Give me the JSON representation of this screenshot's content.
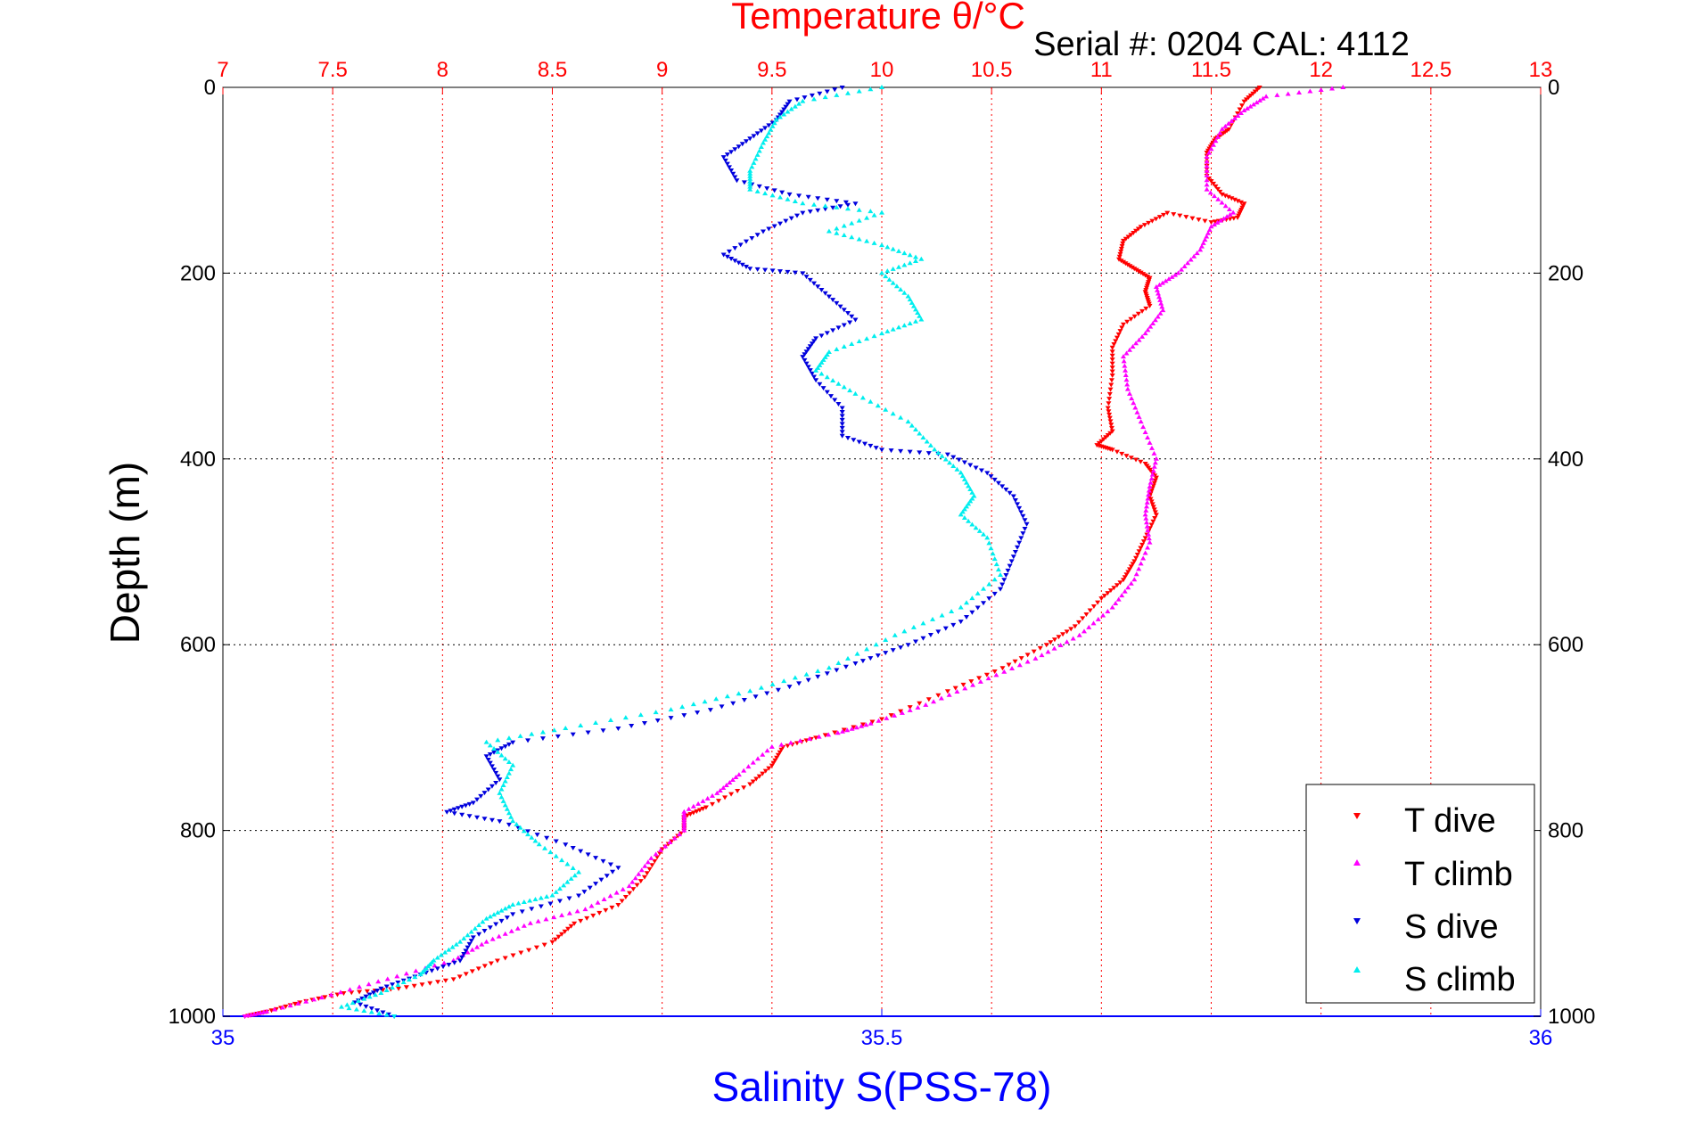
{
  "chart_data": {
    "type": "scatter",
    "title": "Temperature θ/°C",
    "subtitle": "Serial #: 0204  CAL: 4112",
    "xlabel_top": "Temperature θ/°C",
    "xlabel_bottom": "Salinity S(PSS-78)",
    "ylabel": "Depth (m)",
    "temperature_axis": {
      "range": [
        7,
        13
      ],
      "ticks": [
        "7",
        "7.5",
        "8",
        "8.5",
        "9",
        "9.5",
        "10",
        "10.5",
        "11",
        "11.5",
        "12",
        "12.5",
        "13"
      ]
    },
    "salinity_axis": {
      "range": [
        35,
        36
      ],
      "ticks": [
        "35",
        "35.5",
        "36"
      ]
    },
    "depth_axis": {
      "range": [
        0,
        1000
      ],
      "reversed": true,
      "ticks": [
        "0",
        "200",
        "400",
        "600",
        "800",
        "1000"
      ]
    },
    "grid": true,
    "legend": {
      "placement": "bottom-right",
      "entries": [
        "T dive",
        "T climb",
        "S dive",
        "S climb"
      ]
    },
    "colors": {
      "T dive": "#ff0000",
      "T climb": "#ff00ff",
      "S dive": "#0000dd",
      "S climb": "#00eeee",
      "temperature_axis": "#ff0000",
      "salinity_axis": "#0000ff"
    },
    "series": [
      {
        "name": "T dive",
        "axis": "temperature",
        "points": [
          [
            11.72,
            0
          ],
          [
            11.65,
            15
          ],
          [
            11.58,
            45
          ],
          [
            11.52,
            55
          ],
          [
            11.48,
            70
          ],
          [
            11.48,
            95
          ],
          [
            11.55,
            115
          ],
          [
            11.65,
            125
          ],
          [
            11.62,
            140
          ],
          [
            11.5,
            145
          ],
          [
            11.3,
            135
          ],
          [
            11.18,
            150
          ],
          [
            11.1,
            165
          ],
          [
            11.08,
            185
          ],
          [
            11.15,
            195
          ],
          [
            11.22,
            205
          ],
          [
            11.2,
            220
          ],
          [
            11.22,
            235
          ],
          [
            11.1,
            255
          ],
          [
            11.05,
            280
          ],
          [
            11.05,
            310
          ],
          [
            11.03,
            345
          ],
          [
            11.05,
            370
          ],
          [
            10.98,
            385
          ],
          [
            11.05,
            390
          ],
          [
            11.2,
            405
          ],
          [
            11.25,
            420
          ],
          [
            11.22,
            440
          ],
          [
            11.25,
            460
          ],
          [
            11.2,
            485
          ],
          [
            11.15,
            510
          ],
          [
            11.1,
            530
          ],
          [
            11.0,
            550
          ],
          [
            10.88,
            580
          ],
          [
            10.75,
            600
          ],
          [
            10.55,
            625
          ],
          [
            10.3,
            650
          ],
          [
            10.0,
            680
          ],
          [
            9.7,
            700
          ],
          [
            9.55,
            710
          ],
          [
            9.5,
            730
          ],
          [
            9.4,
            750
          ],
          [
            9.2,
            775
          ],
          [
            9.1,
            785
          ],
          [
            9.1,
            800
          ],
          [
            9.0,
            820
          ],
          [
            8.92,
            850
          ],
          [
            8.8,
            880
          ],
          [
            8.6,
            900
          ],
          [
            8.5,
            920
          ],
          [
            8.25,
            940
          ],
          [
            8.05,
            960
          ],
          [
            7.8,
            970
          ],
          [
            7.55,
            975
          ],
          [
            7.35,
            985
          ],
          [
            7.2,
            995
          ],
          [
            7.1,
            1000
          ]
        ]
      },
      {
        "name": "T climb",
        "axis": "temperature",
        "points": [
          [
            12.1,
            0
          ],
          [
            11.75,
            10
          ],
          [
            11.65,
            25
          ],
          [
            11.55,
            45
          ],
          [
            11.48,
            75
          ],
          [
            11.48,
            110
          ],
          [
            11.6,
            135
          ],
          [
            11.5,
            150
          ],
          [
            11.45,
            175
          ],
          [
            11.35,
            200
          ],
          [
            11.25,
            215
          ],
          [
            11.28,
            240
          ],
          [
            11.2,
            265
          ],
          [
            11.1,
            290
          ],
          [
            11.12,
            325
          ],
          [
            11.18,
            360
          ],
          [
            11.25,
            400
          ],
          [
            11.22,
            430
          ],
          [
            11.2,
            460
          ],
          [
            11.22,
            490
          ],
          [
            11.15,
            530
          ],
          [
            11.05,
            560
          ],
          [
            10.9,
            590
          ],
          [
            10.7,
            615
          ],
          [
            10.45,
            640
          ],
          [
            10.2,
            665
          ],
          [
            9.95,
            685
          ],
          [
            9.8,
            695
          ],
          [
            9.5,
            710
          ],
          [
            9.35,
            740
          ],
          [
            9.25,
            760
          ],
          [
            9.1,
            780
          ],
          [
            9.1,
            800
          ],
          [
            8.95,
            830
          ],
          [
            8.85,
            860
          ],
          [
            8.65,
            885
          ],
          [
            8.4,
            900
          ],
          [
            8.2,
            920
          ],
          [
            8.05,
            940
          ],
          [
            7.75,
            960
          ],
          [
            7.45,
            980
          ],
          [
            7.2,
            995
          ],
          [
            7.1,
            1000
          ]
        ]
      },
      {
        "name": "S dive",
        "axis": "salinity",
        "points": [
          [
            35.47,
            0
          ],
          [
            35.43,
            15
          ],
          [
            35.42,
            35
          ],
          [
            35.4,
            55
          ],
          [
            35.38,
            75
          ],
          [
            35.39,
            100
          ],
          [
            35.43,
            115
          ],
          [
            35.48,
            125
          ],
          [
            35.44,
            135
          ],
          [
            35.41,
            155
          ],
          [
            35.38,
            180
          ],
          [
            35.4,
            195
          ],
          [
            35.44,
            200
          ],
          [
            35.46,
            225
          ],
          [
            35.48,
            250
          ],
          [
            35.45,
            270
          ],
          [
            35.44,
            290
          ],
          [
            35.45,
            315
          ],
          [
            35.47,
            345
          ],
          [
            35.47,
            375
          ],
          [
            35.5,
            390
          ],
          [
            35.55,
            395
          ],
          [
            35.58,
            415
          ],
          [
            35.6,
            440
          ],
          [
            35.61,
            470
          ],
          [
            35.6,
            505
          ],
          [
            35.59,
            540
          ],
          [
            35.56,
            575
          ],
          [
            35.52,
            600
          ],
          [
            35.48,
            620
          ],
          [
            35.43,
            645
          ],
          [
            35.37,
            670
          ],
          [
            35.3,
            690
          ],
          [
            35.22,
            705
          ],
          [
            35.2,
            720
          ],
          [
            35.21,
            745
          ],
          [
            35.19,
            770
          ],
          [
            35.17,
            780
          ],
          [
            35.21,
            790
          ],
          [
            35.26,
            815
          ],
          [
            35.3,
            840
          ],
          [
            35.27,
            870
          ],
          [
            35.22,
            890
          ],
          [
            35.19,
            915
          ],
          [
            35.18,
            940
          ],
          [
            35.15,
            955
          ],
          [
            35.12,
            970
          ],
          [
            35.1,
            985
          ],
          [
            35.13,
            1000
          ]
        ]
      },
      {
        "name": "S climb",
        "axis": "salinity",
        "points": [
          [
            35.5,
            0
          ],
          [
            35.44,
            15
          ],
          [
            35.42,
            35
          ],
          [
            35.41,
            60
          ],
          [
            35.4,
            90
          ],
          [
            35.4,
            110
          ],
          [
            35.44,
            125
          ],
          [
            35.5,
            135
          ],
          [
            35.46,
            155
          ],
          [
            35.5,
            170
          ],
          [
            35.53,
            185
          ],
          [
            35.5,
            200
          ],
          [
            35.52,
            225
          ],
          [
            35.53,
            250
          ],
          [
            35.5,
            265
          ],
          [
            35.46,
            285
          ],
          [
            35.45,
            305
          ],
          [
            35.48,
            330
          ],
          [
            35.52,
            360
          ],
          [
            35.54,
            390
          ],
          [
            35.56,
            415
          ],
          [
            35.57,
            440
          ],
          [
            35.56,
            460
          ],
          [
            35.58,
            485
          ],
          [
            35.59,
            525
          ],
          [
            35.56,
            560
          ],
          [
            35.51,
            590
          ],
          [
            35.46,
            625
          ],
          [
            35.4,
            650
          ],
          [
            35.34,
            670
          ],
          [
            35.26,
            690
          ],
          [
            35.2,
            705
          ],
          [
            35.22,
            730
          ],
          [
            35.21,
            760
          ],
          [
            35.22,
            790
          ],
          [
            35.24,
            815
          ],
          [
            35.27,
            845
          ],
          [
            35.25,
            870
          ],
          [
            35.22,
            880
          ],
          [
            35.2,
            895
          ],
          [
            35.18,
            920
          ],
          [
            35.16,
            940
          ],
          [
            35.15,
            955
          ],
          [
            35.12,
            975
          ],
          [
            35.09,
            990
          ],
          [
            35.13,
            1000
          ]
        ]
      }
    ]
  }
}
